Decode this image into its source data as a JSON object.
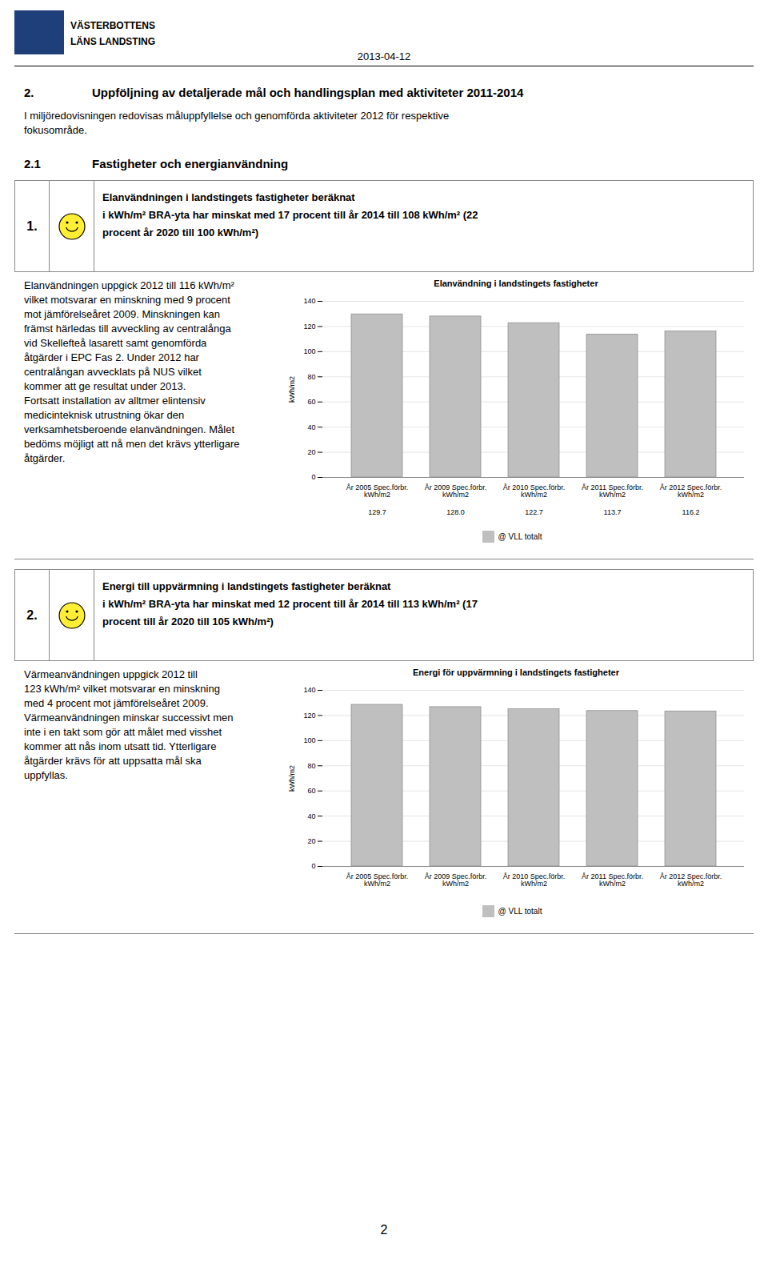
{
  "page": {
    "logo": [
      "VÄSTERBOTTENS",
      "LÄNS LANDSTING"
    ],
    "date": "2013-04-12",
    "section": {
      "number": "2.",
      "title": "Uppföljning av detaljerade mål och handlingsplan med aktiviteter 2011-2014"
    },
    "intro": [
      "I miljöredovisningen redovisas måluppfyllelse och genomförda aktiviteter 2012 för respektive",
      "fokusområde."
    ],
    "subsection": {
      "number": "2.1",
      "title": "Fastigheter och energianvändning"
    },
    "page_number": "2"
  },
  "items": [
    {
      "number": "1.",
      "goal": [
        "Elanvändningen i landstingets fastigheter beräknat",
        "i kWh/m² BRA-yta har minskat med 17 procent till år 2014 till 108 kWh/m² (22",
        "procent år 2020 till 100 kWh/m²)"
      ],
      "body": [
        "Elanvändningen uppgick 2012 till 116 kWh/m²",
        "vilket motsvarar en minskning med 9 procent",
        "mot jämförelseåret 2009. Minskningen kan",
        "främst härledas till avveckling av centralånga",
        "vid Skellefteå lasarett samt genomförda",
        "åtgärder i EPC Fas 2. Under 2012 har",
        "centralångan avvecklats på NUS vilket",
        "kommer att ge resultat under 2013.",
        "Fortsatt installation av alltmer elintensiv",
        "medicinteknisk utrustning ökar den",
        "verksamhetsberoende elanvändningen. Målet",
        "bedöms möjligt att nå men det krävs ytterligare",
        "åtgärder."
      ]
    },
    {
      "number": "2.",
      "goal": [
        "Energi till uppvärmning i landstingets fastigheter beräknat",
        "i kWh/m² BRA-yta har minskat med 12 procent till år 2014 till 113 kWh/m² (17",
        "procent till år 2020 till 105 kWh/m²)"
      ],
      "body": [
        "Värmeanvändningen uppgick 2012 till",
        "123 kWh/m² vilket motsvarar en minskning",
        "med 4 procent mot jämförelseåret 2009.",
        "Värmeanvändningen minskar successivt men",
        "inte i en takt som gör att målet med visshet",
        "kommer att nås inom utsatt tid. Ytterligare",
        "åtgärder krävs för att uppsatta mål ska",
        "uppfyllas."
      ]
    }
  ],
  "chart_data": [
    {
      "type": "bar",
      "title": "Elanvändning i landstingets fastigheter",
      "ylabel": "kWh/m2",
      "categories": [
        "År 2005 Spec.förbr.\nkWh/m2",
        "År 2009 Spec.förbr.\nkWh/m2",
        "År 2010 Spec.förbr.\nkWh/m2",
        "År 2011 Spec.förbr.\nkWh/m2",
        "År 2012 Spec.förbr.\nkWh/m2"
      ],
      "series": [
        {
          "name": "@ VLL totalt",
          "color": "#bfbfbf",
          "values": [
            129.7,
            128.0,
            122.7,
            113.7,
            116.2
          ],
          "value_labels": [
            "129.7",
            "128.0",
            "122.7",
            "113.7",
            "116.2"
          ]
        }
      ],
      "ylim": [
        0,
        140
      ],
      "yticks": [
        0,
        20,
        40,
        60,
        80,
        100,
        120,
        140
      ],
      "grid": true,
      "legend": "bottom"
    },
    {
      "type": "bar",
      "title": "Energi för uppvärmning i landstingets fastigheter",
      "ylabel": "kWh/m2",
      "categories": [
        "År 2005 Spec.förbr.\nkWh/m2",
        "År 2009 Spec.förbr.\nkWh/m2",
        "År 2010 Spec.förbr.\nkWh/m2",
        "År 2011 Spec.förbr.\nkWh/m2",
        "År 2012 Spec.förbr.\nkWh/m2"
      ],
      "series": [
        {
          "name": "@ VLL totalt",
          "color": "#bfbfbf",
          "values": [
            128.5,
            126.7,
            125.0,
            123.6,
            123.3
          ]
        }
      ],
      "ylim": [
        0,
        140
      ],
      "yticks": [
        0,
        20,
        40,
        60,
        80,
        100,
        120,
        140
      ],
      "grid": true,
      "legend": "bottom"
    }
  ]
}
